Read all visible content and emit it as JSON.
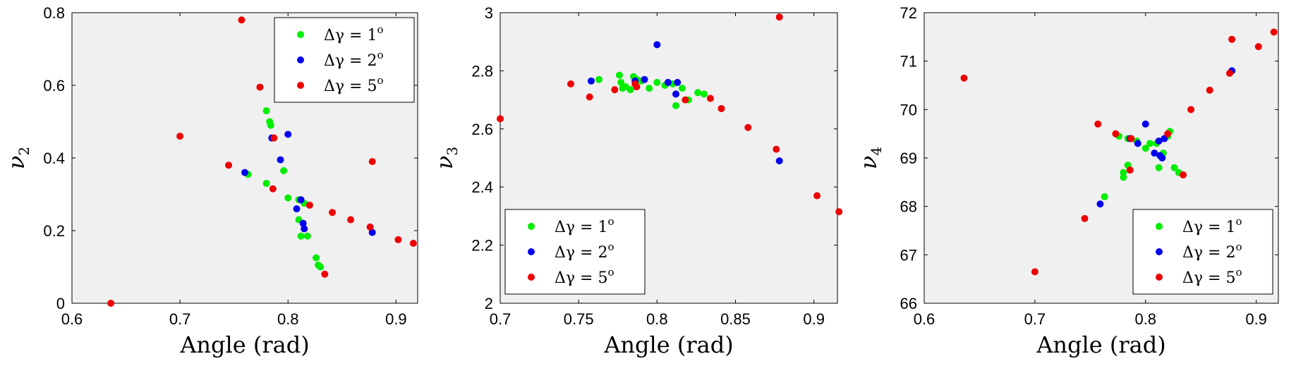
{
  "chart_data": [
    {
      "type": "scatter",
      "xlabel": "Angle (rad)",
      "ylabel": "ν",
      "ylabel_sub": "2",
      "xlim": [
        0.6,
        0.92
      ],
      "ylim": [
        0,
        0.8
      ],
      "xticks": [
        "0.6",
        "0.7",
        "0.8",
        "0.9"
      ],
      "yticks": [
        "0",
        "0.2",
        "0.4",
        "0.6",
        "0.8"
      ],
      "legend": "top-right",
      "series": [
        {
          "name": "Δγ = 1",
          "sup": "o",
          "color": "#00ee00",
          "points": [
            [
              0.78,
              0.53
            ],
            [
              0.783,
              0.5
            ],
            [
              0.784,
              0.49
            ],
            [
              0.763,
              0.355
            ],
            [
              0.78,
              0.33
            ],
            [
              0.796,
              0.365
            ],
            [
              0.8,
              0.29
            ],
            [
              0.81,
              0.285
            ],
            [
              0.815,
              0.275
            ],
            [
              0.82,
              0.27
            ],
            [
              0.81,
              0.23
            ],
            [
              0.812,
              0.185
            ],
            [
              0.818,
              0.185
            ],
            [
              0.826,
              0.125
            ],
            [
              0.828,
              0.105
            ],
            [
              0.83,
              0.1
            ]
          ]
        },
        {
          "name": "Δγ = 2",
          "sup": "o",
          "color": "#0000ee",
          "points": [
            [
              0.76,
              0.36
            ],
            [
              0.785,
              0.455
            ],
            [
              0.8,
              0.465
            ],
            [
              0.793,
              0.395
            ],
            [
              0.808,
              0.26
            ],
            [
              0.812,
              0.285
            ],
            [
              0.814,
              0.22
            ],
            [
              0.815,
              0.205
            ],
            [
              0.878,
              0.195
            ]
          ]
        },
        {
          "name": "Δγ = 5",
          "sup": "o",
          "color": "#ee0000",
          "points": [
            [
              0.636,
              0.0
            ],
            [
              0.7,
              0.46
            ],
            [
              0.745,
              0.38
            ],
            [
              0.757,
              0.78
            ],
            [
              0.774,
              0.595
            ],
            [
              0.786,
              0.315
            ],
            [
              0.787,
              0.455
            ],
            [
              0.82,
              0.27
            ],
            [
              0.841,
              0.25
            ],
            [
              0.858,
              0.23
            ],
            [
              0.876,
              0.21
            ],
            [
              0.878,
              0.39
            ],
            [
              0.902,
              0.175
            ],
            [
              0.916,
              0.165
            ],
            [
              0.834,
              0.08
            ]
          ]
        }
      ]
    },
    {
      "type": "scatter",
      "xlabel": "Angle (rad)",
      "ylabel": "ν",
      "ylabel_sub": "3",
      "xlim": [
        0.7,
        0.915
      ],
      "ylim": [
        2,
        3
      ],
      "xticks": [
        "0.7",
        "0.75",
        "0.8",
        "0.85",
        "0.9"
      ],
      "yticks": [
        "2",
        "2.2",
        "2.4",
        "2.6",
        "2.8",
        "3"
      ],
      "legend": "bottom-left",
      "series": [
        {
          "name": "Δγ = 1",
          "sup": "o",
          "color": "#00ee00",
          "points": [
            [
              0.763,
              2.77
            ],
            [
              0.776,
              2.785
            ],
            [
              0.777,
              2.76
            ],
            [
              0.778,
              2.74
            ],
            [
              0.78,
              2.745
            ],
            [
              0.783,
              2.735
            ],
            [
              0.785,
              2.78
            ],
            [
              0.787,
              2.77
            ],
            [
              0.79,
              2.765
            ],
            [
              0.795,
              2.74
            ],
            [
              0.8,
              2.76
            ],
            [
              0.805,
              2.75
            ],
            [
              0.81,
              2.755
            ],
            [
              0.812,
              2.68
            ],
            [
              0.816,
              2.74
            ],
            [
              0.82,
              2.7
            ],
            [
              0.826,
              2.725
            ],
            [
              0.83,
              2.72
            ]
          ]
        },
        {
          "name": "Δγ = 2",
          "sup": "o",
          "color": "#0000ee",
          "points": [
            [
              0.758,
              2.765
            ],
            [
              0.786,
              2.765
            ],
            [
              0.792,
              2.77
            ],
            [
              0.8,
              2.89
            ],
            [
              0.807,
              2.76
            ],
            [
              0.812,
              2.72
            ],
            [
              0.813,
              2.76
            ],
            [
              0.878,
              2.49
            ]
          ]
        },
        {
          "name": "Δγ = 5",
          "sup": "o",
          "color": "#ee0000",
          "points": [
            [
              0.7,
              2.635
            ],
            [
              0.745,
              2.755
            ],
            [
              0.757,
              2.71
            ],
            [
              0.773,
              2.735
            ],
            [
              0.786,
              2.755
            ],
            [
              0.787,
              2.745
            ],
            [
              0.818,
              2.7
            ],
            [
              0.834,
              2.705
            ],
            [
              0.841,
              2.67
            ],
            [
              0.858,
              2.605
            ],
            [
              0.876,
              2.53
            ],
            [
              0.878,
              2.985
            ],
            [
              0.902,
              2.37
            ],
            [
              0.916,
              2.315
            ]
          ]
        }
      ]
    },
    {
      "type": "scatter",
      "xlabel": "Angle (rad)",
      "ylabel": "ν",
      "ylabel_sub": "4",
      "xlim": [
        0.6,
        0.92
      ],
      "ylim": [
        66,
        72
      ],
      "xticks": [
        "0.6",
        "0.7",
        "0.8",
        "0.9"
      ],
      "yticks": [
        "66",
        "67",
        "68",
        "69",
        "70",
        "71",
        "72"
      ],
      "legend": "bottom-right",
      "series": [
        {
          "name": "Δγ = 1",
          "sup": "o",
          "color": "#00ee00",
          "points": [
            [
              0.763,
              68.2
            ],
            [
              0.78,
              68.6
            ],
            [
              0.78,
              68.7
            ],
            [
              0.784,
              68.85
            ],
            [
              0.776,
              69.45
            ],
            [
              0.784,
              69.4
            ],
            [
              0.792,
              69.35
            ],
            [
              0.8,
              69.2
            ],
            [
              0.804,
              69.3
            ],
            [
              0.81,
              69.3
            ],
            [
              0.812,
              68.8
            ],
            [
              0.816,
              69.1
            ],
            [
              0.82,
              69.45
            ],
            [
              0.822,
              69.55
            ],
            [
              0.826,
              68.8
            ],
            [
              0.83,
              68.7
            ]
          ]
        },
        {
          "name": "Δγ = 2",
          "sup": "o",
          "color": "#0000ee",
          "points": [
            [
              0.759,
              68.05
            ],
            [
              0.786,
              69.4
            ],
            [
              0.793,
              69.3
            ],
            [
              0.8,
              69.7
            ],
            [
              0.808,
              69.1
            ],
            [
              0.812,
              69.35
            ],
            [
              0.813,
              69.05
            ],
            [
              0.815,
              69.0
            ],
            [
              0.817,
              69.4
            ],
            [
              0.878,
              70.8
            ]
          ]
        },
        {
          "name": "Δγ = 5",
          "sup": "o",
          "color": "#ee0000",
          "points": [
            [
              0.636,
              70.65
            ],
            [
              0.7,
              66.65
            ],
            [
              0.745,
              67.75
            ],
            [
              0.757,
              69.7
            ],
            [
              0.773,
              69.5
            ],
            [
              0.786,
              68.75
            ],
            [
              0.787,
              69.4
            ],
            [
              0.82,
              69.5
            ],
            [
              0.834,
              68.65
            ],
            [
              0.841,
              70.0
            ],
            [
              0.858,
              70.4
            ],
            [
              0.876,
              70.75
            ],
            [
              0.878,
              71.45
            ],
            [
              0.902,
              71.3
            ],
            [
              0.916,
              71.6
            ]
          ]
        }
      ]
    }
  ]
}
